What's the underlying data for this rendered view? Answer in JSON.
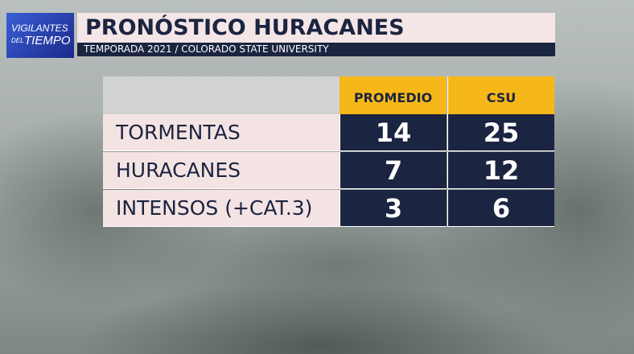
{
  "logo": {
    "line1": "VIGILANTES",
    "line2": "DEL",
    "line3": "TIEMPO"
  },
  "header": {
    "title": "PRONÓSTICO HURACANES",
    "subtitle": "TEMPORADA 2021 / COLORADO STATE UNIVERSITY"
  },
  "table": {
    "columns": [
      "PROMEDIO",
      "CSU"
    ],
    "rows": [
      {
        "label": "TORMENTAS",
        "values": [
          14,
          25
        ]
      },
      {
        "label": "HURACANES",
        "values": [
          7,
          12
        ]
      },
      {
        "label": "INTENSOS (+CAT.3)",
        "values": [
          3,
          6
        ]
      }
    ]
  }
}
